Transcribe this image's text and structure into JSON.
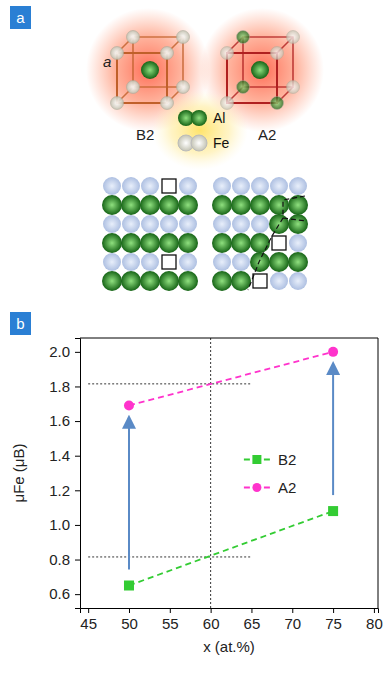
{
  "diagram": {
    "panel_label": "a",
    "lattice_parameter": "a",
    "structures": [
      "B2",
      "A2"
    ],
    "species": [
      {
        "label": "Al",
        "color": "#2e8b2e"
      },
      {
        "label": "Fe",
        "color": "#b9c9e6"
      }
    ]
  },
  "chart_data": {
    "type": "line",
    "panel_label": "b",
    "xlabel": "x (at.%)",
    "ylabel": "μFe (μB)",
    "x": [
      50,
      75
    ],
    "series": [
      {
        "name": "B2",
        "color": "#33cc33",
        "marker": "square",
        "line_style": "dashed",
        "values": [
          0.65,
          1.08
        ]
      },
      {
        "name": "A2",
        "color": "#ff33cc",
        "marker": "circle",
        "line_style": "dashed",
        "values": [
          1.69,
          2.0
        ]
      }
    ],
    "xlim": [
      44,
      80.5
    ],
    "xticks": [
      45,
      50,
      55,
      60,
      65,
      70,
      75,
      80
    ],
    "ylim": [
      0.52,
      2.08
    ],
    "yticks": [
      0.6,
      0.8,
      {
        "value": 1,
        "label": "1.0"
      },
      1.2,
      1.4,
      1.6,
      1.8,
      {
        "value": 2,
        "label": "2.0"
      }
    ],
    "reference_lines": {
      "x": [
        60
      ],
      "y": [
        0.815,
        1.815
      ],
      "y_line_x_range": [
        45,
        65
      ]
    },
    "legend": "center right",
    "grid": false
  }
}
